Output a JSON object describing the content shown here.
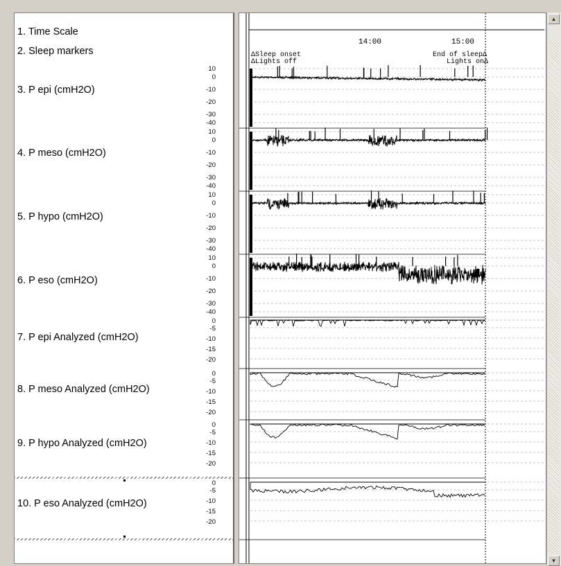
{
  "channels": [
    {
      "label": "1. Time Scale"
    },
    {
      "label": "2. Sleep markers"
    },
    {
      "label": "3. P epi (cmH2O)",
      "ticks": [
        "10",
        "0",
        "-10",
        "-20",
        "-30",
        "-40"
      ]
    },
    {
      "label": "4. P meso (cmH2O)",
      "ticks": [
        "10",
        "0",
        "-10",
        "-20",
        "-30",
        "-40"
      ]
    },
    {
      "label": "5. P hypo (cmH2O)",
      "ticks": [
        "10",
        "0",
        "-10",
        "-20",
        "-30",
        "-40"
      ]
    },
    {
      "label": "6. P eso (cmH2O)",
      "ticks": [
        "10",
        "0",
        "-10",
        "-20",
        "-30",
        "-40"
      ]
    },
    {
      "label": "7. P epi Analyzed  (cmH2O)",
      "ticks": [
        "0",
        "-5",
        "-10",
        "-15",
        "-20"
      ]
    },
    {
      "label": "8. P meso Analyzed  (cmH2O)",
      "ticks": [
        "0",
        "-5",
        "-10",
        "-15",
        "-20"
      ]
    },
    {
      "label": "9. P hypo Analyzed  (cmH2O)",
      "ticks": [
        "0",
        "-5",
        "-10",
        "-15",
        "-20"
      ]
    },
    {
      "label": "10. P eso Analyzed  (cmH2O)",
      "ticks": [
        "0",
        "-5",
        "-10",
        "-15",
        "-20"
      ]
    }
  ],
  "time_scale": {
    "labels": [
      "14:00",
      "15:00"
    ]
  },
  "sleep_markers": {
    "sleep_onset": "ΔSleep onset",
    "lights_off": "ΔLights off",
    "end_of_sleep": "End of sleepΔ",
    "lights_on": "Lights onΔ"
  },
  "scrollbar": {
    "up_icon": "arrow-up-icon",
    "down_icon": "arrow-down-icon"
  }
}
